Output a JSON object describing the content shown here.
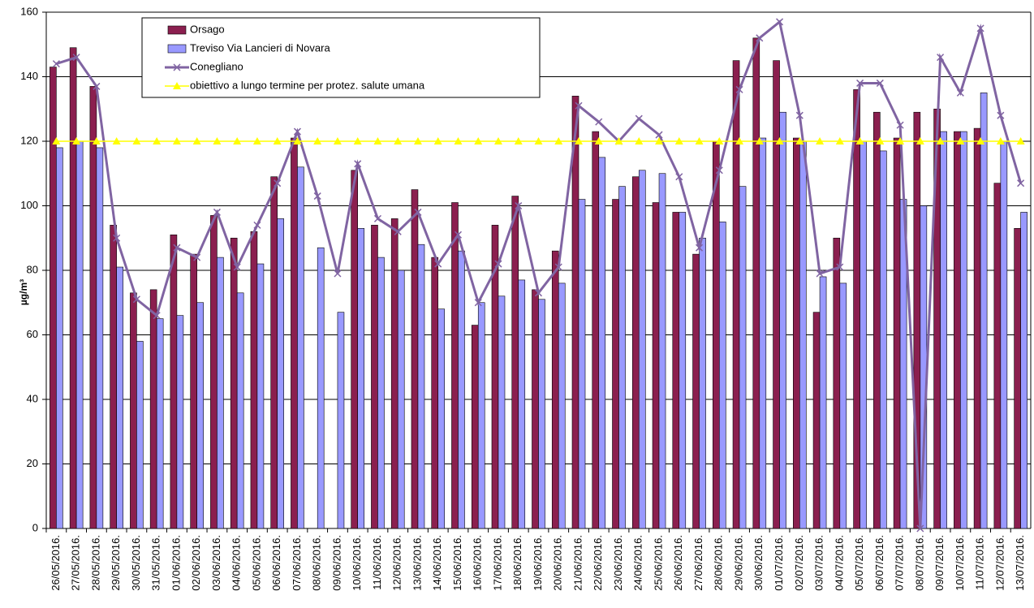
{
  "chart_data": {
    "type": "bar",
    "y_label": "µg/m³",
    "categories": [
      "26/05/2016.",
      "27/05/2016.",
      "28/05/2016.",
      "29/05/2016.",
      "30/05/2016.",
      "31/05/2016.",
      "01/06/2016.",
      "02/06/2016.",
      "03/06/2016.",
      "04/06/2016.",
      "05/06/2016.",
      "06/06/2016.",
      "07/06/2016.",
      "08/06/2016.",
      "09/06/2016.",
      "10/06/2016.",
      "11/06/2016.",
      "12/06/2016.",
      "13/06/2016.",
      "14/06/2016.",
      "15/06/2016.",
      "16/06/2016.",
      "17/06/2016.",
      "18/06/2016.",
      "19/06/2016.",
      "20/06/2016.",
      "21/06/2016.",
      "22/06/2016.",
      "23/06/2016.",
      "24/06/2016.",
      "25/06/2016.",
      "26/06/2016.",
      "27/06/2016.",
      "28/06/2016.",
      "29/06/2016.",
      "30/06/2016.",
      "01/07/2016.",
      "02/07/2016.",
      "03/07/2016.",
      "04/07/2016.",
      "05/07/2016.",
      "06/07/2016.",
      "07/07/2016.",
      "08/07/2016.",
      "09/07/2016.",
      "10/07/2016.",
      "11/07/2016.",
      "12/07/2016.",
      "13/07/2016."
    ],
    "series": [
      {
        "name": "Orsago",
        "color": "#8b1f4f",
        "type": "bar",
        "values": [
          143,
          149,
          137,
          94,
          73,
          74,
          91,
          85,
          97,
          90,
          92,
          109,
          121,
          null,
          null,
          111,
          94,
          96,
          105,
          84,
          101,
          63,
          94,
          103,
          74,
          86,
          134,
          123,
          102,
          109,
          101,
          98,
          85,
          120,
          145,
          152,
          145,
          121,
          67,
          90,
          136,
          129,
          121,
          129,
          130,
          123,
          124,
          107,
          93
        ]
      },
      {
        "name": "Treviso Via Lancieri  di Novara",
        "color": "#9999ff",
        "type": "bar",
        "values": [
          118,
          120,
          118,
          81,
          58,
          65,
          66,
          70,
          84,
          73,
          82,
          96,
          112,
          87,
          67,
          93,
          84,
          80,
          88,
          68,
          86,
          70,
          72,
          77,
          71,
          76,
          102,
          115,
          106,
          111,
          110,
          98,
          90,
          95,
          106,
          121,
          129,
          120,
          78,
          76,
          120,
          117,
          102,
          100,
          123,
          123,
          135,
          120,
          98
        ]
      },
      {
        "name": "Conegliano",
        "color": "#8064a2",
        "type": "line",
        "marker": "x",
        "values": [
          144,
          146,
          137,
          90,
          71,
          66,
          87,
          84,
          98,
          81,
          94,
          107,
          123,
          103,
          79,
          113,
          96,
          92,
          98,
          82,
          91,
          70,
          82,
          100,
          73,
          81,
          131,
          126,
          120,
          127,
          122,
          109,
          87,
          111,
          136,
          152,
          157,
          128,
          79,
          81,
          138,
          138,
          125,
          0,
          146,
          135,
          155,
          128,
          107
        ]
      },
      {
        "name": "obiettivo a lungo termine per protez. salute umana",
        "color": "#ffff00",
        "type": "line",
        "marker": "triangle",
        "values": [
          120,
          120,
          120,
          120,
          120,
          120,
          120,
          120,
          120,
          120,
          120,
          120,
          120,
          120,
          120,
          120,
          120,
          120,
          120,
          120,
          120,
          120,
          120,
          120,
          120,
          120,
          120,
          120,
          120,
          120,
          120,
          120,
          120,
          120,
          120,
          120,
          120,
          120,
          120,
          120,
          120,
          120,
          120,
          120,
          120,
          120,
          120,
          120,
          120
        ]
      }
    ],
    "ylim": [
      0,
      160
    ],
    "yticks": [
      0,
      20,
      40,
      60,
      80,
      100,
      120,
      140,
      160
    ],
    "grid": true
  }
}
